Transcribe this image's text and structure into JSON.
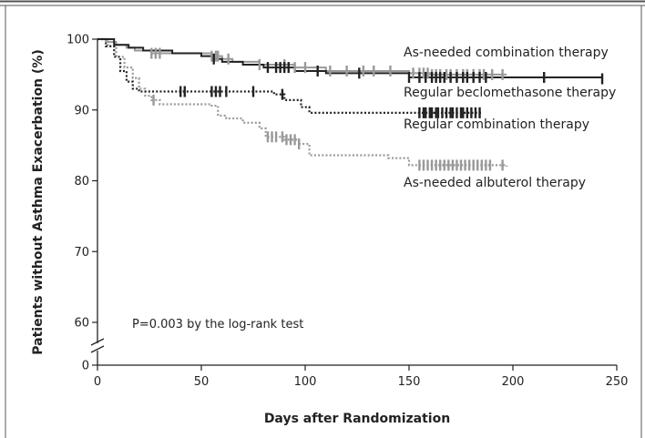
{
  "chart_data": {
    "type": "line",
    "title": "",
    "xlabel": "Days after Randomization",
    "ylabel": "Patients without Asthma Exacerbation (%)",
    "xlim": [
      0,
      250
    ],
    "ylim": [
      60,
      100
    ],
    "y_axis_break": {
      "below": 60,
      "baseline": 0
    },
    "x_ticks": [
      "0",
      "50",
      "100",
      "150",
      "200",
      "250"
    ],
    "y_ticks": [
      "0",
      "60",
      "70",
      "80",
      "90",
      "100"
    ],
    "grid": false,
    "annotation": "P=0.003 by the log-rank test",
    "series": [
      {
        "name": "As-needed combination therapy",
        "color": "#999999",
        "dash": "solid",
        "points": [
          [
            0,
            100
          ],
          [
            4,
            99.6
          ],
          [
            9,
            99.2
          ],
          [
            14,
            98.8
          ],
          [
            18,
            98.4
          ],
          [
            26,
            98
          ],
          [
            55,
            97.6
          ],
          [
            60,
            97.2
          ],
          [
            65,
            96.8
          ],
          [
            78,
            96.4
          ],
          [
            95,
            96
          ],
          [
            110,
            95.5
          ],
          [
            150,
            95.2
          ],
          [
            160,
            95
          ],
          [
            197,
            95
          ]
        ],
        "censor": [
          26,
          28,
          30,
          55,
          57,
          58,
          63,
          78,
          90,
          95,
          100,
          112,
          120,
          128,
          133,
          141,
          152,
          155,
          157,
          159,
          161,
          163,
          165,
          168,
          170,
          173,
          176,
          178,
          181,
          184,
          186,
          190,
          195
        ]
      },
      {
        "name": "Regular beclomethasone therapy",
        "color": "#222222",
        "dash": "solid",
        "points": [
          [
            0,
            100
          ],
          [
            8,
            99.2
          ],
          [
            15,
            98.8
          ],
          [
            22,
            98.4
          ],
          [
            36,
            98
          ],
          [
            50,
            97.6
          ],
          [
            56,
            97.2
          ],
          [
            60,
            96.8
          ],
          [
            70,
            96.4
          ],
          [
            80,
            96
          ],
          [
            95,
            95.5
          ],
          [
            110,
            95.2
          ],
          [
            150,
            94.6
          ],
          [
            243,
            94.4
          ]
        ],
        "censor": [
          56,
          82,
          86,
          88,
          90,
          92,
          106,
          126,
          150,
          155,
          158,
          161,
          163,
          165,
          167,
          170,
          173,
          176,
          178,
          181,
          184,
          187,
          215,
          243
        ]
      },
      {
        "name": "Regular combination therapy",
        "color": "#222222",
        "dash": "dot",
        "points": [
          [
            0,
            100
          ],
          [
            4,
            99
          ],
          [
            8,
            97.5
          ],
          [
            11,
            95.5
          ],
          [
            14,
            94
          ],
          [
            17,
            93
          ],
          [
            20,
            92.6
          ],
          [
            85,
            92.2
          ],
          [
            90,
            91.4
          ],
          [
            98,
            90.4
          ],
          [
            102,
            89.6
          ],
          [
            185,
            89.6
          ]
        ],
        "censor": [
          40,
          42,
          55,
          57,
          59,
          62,
          75,
          89,
          155,
          157,
          158,
          160,
          161,
          163,
          164,
          166,
          168,
          170,
          171,
          173,
          175,
          176,
          178,
          180,
          182,
          184
        ]
      },
      {
        "name": "As-needed albuterol therapy",
        "color": "#999999",
        "dash": "dot",
        "points": [
          [
            0,
            100
          ],
          [
            5,
            99
          ],
          [
            9,
            97.5
          ],
          [
            13,
            96
          ],
          [
            17,
            94.5
          ],
          [
            20,
            93
          ],
          [
            23,
            92
          ],
          [
            26,
            91.4
          ],
          [
            30,
            90.8
          ],
          [
            55,
            90.6
          ],
          [
            58,
            89.2
          ],
          [
            62,
            88.8
          ],
          [
            70,
            88.2
          ],
          [
            78,
            87.4
          ],
          [
            81,
            86.2
          ],
          [
            90,
            85.8
          ],
          [
            97,
            85.2
          ],
          [
            102,
            83.6
          ],
          [
            140,
            83.2
          ],
          [
            150,
            82.2
          ],
          [
            197,
            82
          ]
        ],
        "censor": [
          27,
          82,
          84,
          86,
          89,
          91,
          93,
          95,
          97,
          155,
          157,
          159,
          161,
          163,
          165,
          167,
          169,
          171,
          173,
          175,
          177,
          179,
          181,
          183,
          185,
          187,
          189,
          195
        ]
      }
    ]
  }
}
